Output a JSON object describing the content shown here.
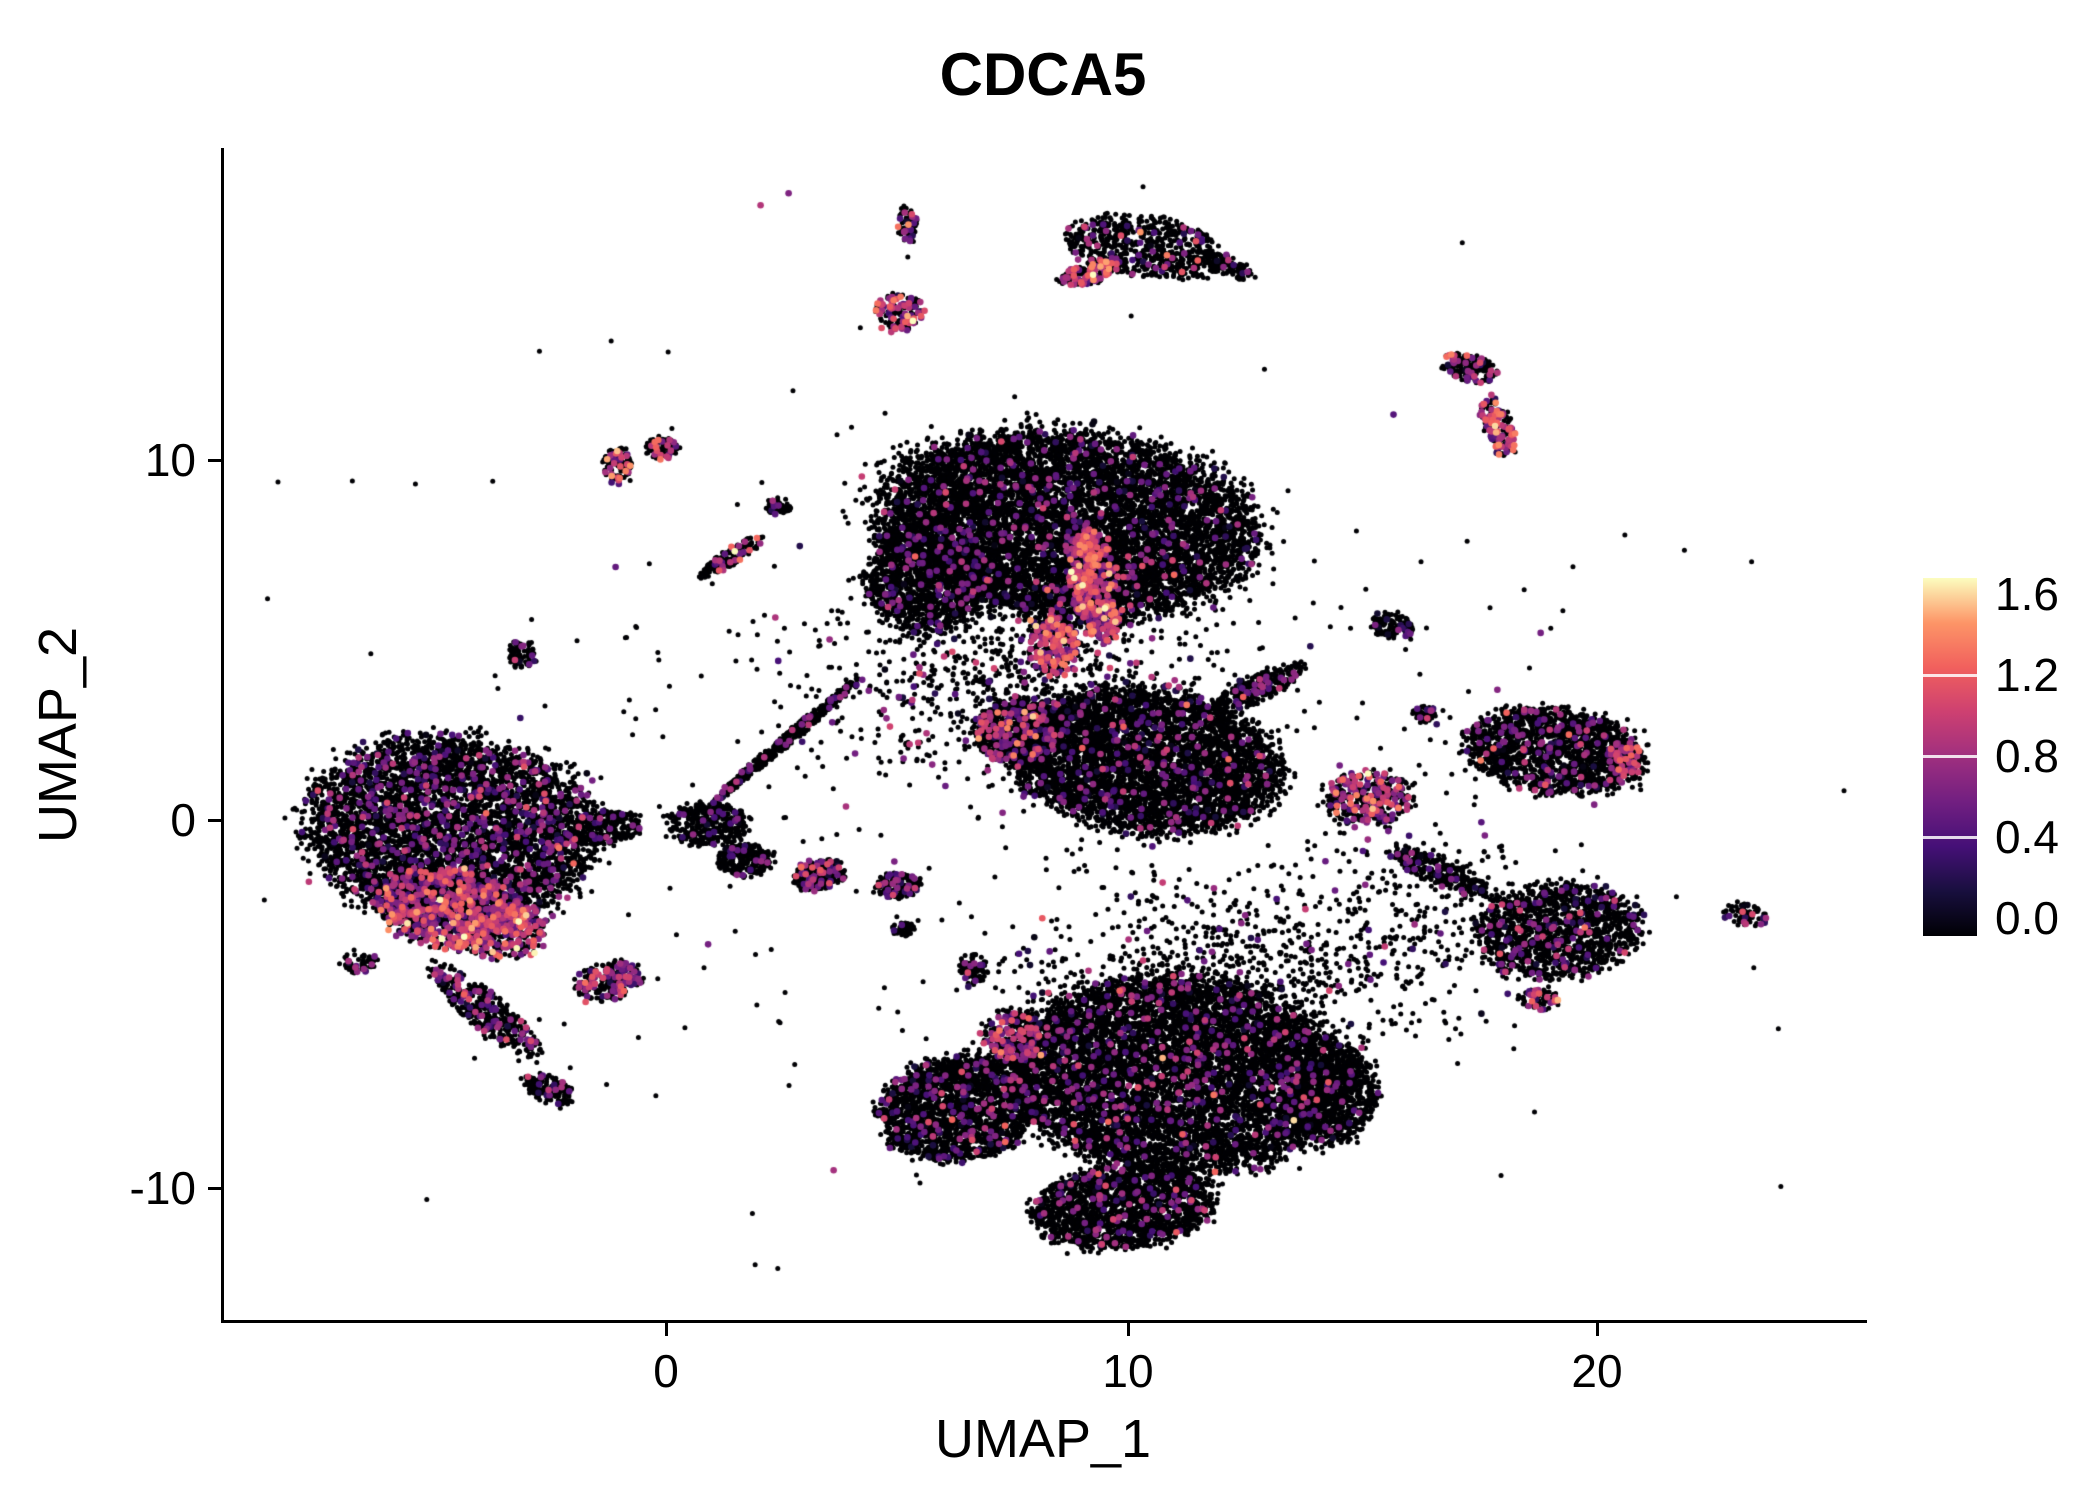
{
  "figure": {
    "background": "#ffffff",
    "text_color": "#000000"
  },
  "chart_data": {
    "type": "scatter",
    "title": "CDCA5",
    "xlabel": "UMAP_1",
    "ylabel": "UMAP_2",
    "xlim": [
      -9.5,
      25.7
    ],
    "ylim": [
      -13.7,
      18.4
    ],
    "xticks": [
      0,
      10,
      20
    ],
    "xtick_labels": [
      "0",
      "10",
      "20"
    ],
    "yticks": [
      -10,
      0,
      10
    ],
    "ytick_labels": [
      "-10",
      "0",
      "10"
    ],
    "grid": false,
    "seed": 42,
    "point": {
      "base_color": "#000004",
      "radius_black": 2.5,
      "radius_expr": 3.3
    },
    "legend": {
      "position": "right",
      "min": 0.0,
      "max": 1.6,
      "ticks": [
        1.6,
        1.2,
        0.8,
        0.4,
        0.0
      ],
      "tick_labels": [
        "1.6",
        "1.2",
        "0.8",
        "0.4",
        "0.0"
      ],
      "palette": "magma",
      "stops": [
        "#000004",
        "#180f3e",
        "#451077",
        "#721f81",
        "#9f2f7f",
        "#cd4071",
        "#f1605d",
        "#fd9567",
        "#fcfdbf"
      ]
    },
    "clusters": [
      {
        "cx": -4.6,
        "cy": -0.3,
        "rx": 3.1,
        "ry": 2.5,
        "rot": -10,
        "n": 5200,
        "frac": 0.1,
        "mean": 0.55,
        "sd": 0.25,
        "dist": "disc"
      },
      {
        "cx": -4.7,
        "cy": -2.4,
        "rx": 1.5,
        "ry": 1.1,
        "rot": -15,
        "n": 900,
        "frac": 0.5,
        "mean": 0.8,
        "sd": 0.3,
        "dist": "disc"
      },
      {
        "cx": -3.5,
        "cy": -3.0,
        "rx": 0.9,
        "ry": 0.8,
        "rot": 0,
        "n": 380,
        "frac": 0.45,
        "mean": 0.85,
        "sd": 0.3,
        "dist": "disc"
      },
      {
        "cx": -3.9,
        "cy": -5.2,
        "rx": 1.7,
        "ry": 0.45,
        "rot": -48,
        "n": 420,
        "frac": 0.18,
        "mean": 0.65,
        "sd": 0.25,
        "dist": "disc"
      },
      {
        "cx": -2.5,
        "cy": -7.4,
        "rx": 0.6,
        "ry": 0.35,
        "rot": -30,
        "n": 150,
        "frac": 0.12,
        "mean": 0.55,
        "sd": 0.2,
        "dist": "disc"
      },
      {
        "cx": -6.6,
        "cy": -3.9,
        "rx": 0.4,
        "ry": 0.3,
        "rot": 0,
        "n": 60,
        "frac": 0.15,
        "mean": 0.6,
        "sd": 0.2,
        "dist": "disc"
      },
      {
        "cx": -1.2,
        "cy": -4.4,
        "rx": 0.75,
        "ry": 0.5,
        "rot": 20,
        "n": 240,
        "frac": 0.3,
        "mean": 0.7,
        "sd": 0.3,
        "dist": "disc"
      },
      {
        "cx": 0.9,
        "cy": -0.1,
        "rx": 0.8,
        "ry": 0.6,
        "rot": 0,
        "n": 380,
        "frac": 0.06,
        "mean": 0.5,
        "sd": 0.2,
        "dist": "disc"
      },
      {
        "cx": 1.7,
        "cy": -1.1,
        "rx": 0.6,
        "ry": 0.45,
        "rot": 0,
        "n": 240,
        "frac": 0.06,
        "mean": 0.5,
        "sd": 0.2,
        "dist": "disc"
      },
      {
        "cx": 2.6,
        "cy": 2.2,
        "rx": 2.3,
        "ry": 0.14,
        "rot": 47,
        "n": 420,
        "frac": 0.08,
        "mean": 0.6,
        "sd": 0.25,
        "dist": "disc"
      },
      {
        "cx": -1.05,
        "cy": 9.7,
        "rx": 0.3,
        "ry": 0.5,
        "rot": 0,
        "n": 110,
        "frac": 0.25,
        "mean": 0.9,
        "sd": 0.3,
        "dist": "disc"
      },
      {
        "cx": -0.1,
        "cy": 10.2,
        "rx": 0.35,
        "ry": 0.3,
        "rot": 0,
        "n": 90,
        "frac": 0.2,
        "mean": 0.8,
        "sd": 0.3,
        "dist": "disc"
      },
      {
        "cx": 1.4,
        "cy": 7.2,
        "rx": 0.85,
        "ry": 0.22,
        "rot": 40,
        "n": 140,
        "frac": 0.15,
        "mean": 0.7,
        "sd": 0.3,
        "dist": "disc"
      },
      {
        "cx": 2.4,
        "cy": 8.6,
        "rx": 0.3,
        "ry": 0.2,
        "rot": 0,
        "n": 60,
        "frac": 0.1,
        "mean": 0.6,
        "sd": 0.2,
        "dist": "disc"
      },
      {
        "cx": -3.1,
        "cy": 4.5,
        "rx": 0.32,
        "ry": 0.38,
        "rot": 0,
        "n": 70,
        "frac": 0.2,
        "mean": 0.7,
        "sd": 0.25,
        "dist": "disc"
      },
      {
        "cx": 5.2,
        "cy": 16.3,
        "rx": 0.2,
        "ry": 0.5,
        "rot": 0,
        "n": 70,
        "frac": 0.3,
        "mean": 0.8,
        "sd": 0.3,
        "dist": "disc"
      },
      {
        "cx": 5.0,
        "cy": 13.9,
        "rx": 0.5,
        "ry": 0.5,
        "rot": 0,
        "n": 160,
        "frac": 0.35,
        "mean": 0.8,
        "sd": 0.3,
        "dist": "disc"
      },
      {
        "cx": 10.3,
        "cy": 15.7,
        "rx": 1.7,
        "ry": 0.8,
        "rot": -12,
        "n": 620,
        "frac": 0.1,
        "mean": 0.65,
        "sd": 0.3,
        "dist": "disc"
      },
      {
        "cx": 9.1,
        "cy": 15.0,
        "rx": 0.7,
        "ry": 0.3,
        "rot": 25,
        "n": 180,
        "frac": 0.3,
        "mean": 0.9,
        "sd": 0.3,
        "dist": "disc"
      },
      {
        "cx": 12.0,
        "cy": 15.2,
        "rx": 0.7,
        "ry": 0.25,
        "rot": -25,
        "n": 130,
        "frac": 0.1,
        "mean": 0.6,
        "sd": 0.25,
        "dist": "disc"
      },
      {
        "cx": 8.6,
        "cy": 8.1,
        "rx": 4.0,
        "ry": 2.5,
        "rot": -8,
        "n": 8500,
        "frac": 0.045,
        "mean": 0.55,
        "sd": 0.25,
        "dist": "disc"
      },
      {
        "cx": 5.6,
        "cy": 6.6,
        "rx": 1.3,
        "ry": 1.5,
        "rot": 0,
        "n": 1300,
        "frac": 0.05,
        "mean": 0.5,
        "sd": 0.22,
        "dist": "disc"
      },
      {
        "cx": 9.2,
        "cy": 6.4,
        "rx": 0.5,
        "ry": 1.6,
        "rot": 8,
        "n": 600,
        "frac": 0.55,
        "mean": 0.85,
        "sd": 0.3,
        "dist": "disc"
      },
      {
        "cx": 8.3,
        "cy": 4.8,
        "rx": 0.5,
        "ry": 0.8,
        "rot": 0,
        "n": 260,
        "frac": 0.5,
        "mean": 0.9,
        "sd": 0.3,
        "dist": "disc"
      },
      {
        "cx": 7.4,
        "cy": 3.9,
        "rx": 2.2,
        "ry": 1.4,
        "rot": 0,
        "n": 850,
        "frac": 0.12,
        "mean": 0.6,
        "sd": 0.25,
        "dist": "gauss"
      },
      {
        "cx": 10.3,
        "cy": 1.6,
        "rx": 2.9,
        "ry": 1.9,
        "rot": -12,
        "n": 4800,
        "frac": 0.05,
        "mean": 0.55,
        "sd": 0.25,
        "dist": "disc"
      },
      {
        "cx": 12.7,
        "cy": 3.6,
        "rx": 1.1,
        "ry": 0.35,
        "rot": 33,
        "n": 280,
        "frac": 0.1,
        "mean": 0.6,
        "sd": 0.25,
        "dist": "disc"
      },
      {
        "cx": 7.6,
        "cy": 2.4,
        "rx": 0.95,
        "ry": 0.9,
        "rot": 0,
        "n": 700,
        "frac": 0.18,
        "mean": 0.7,
        "sd": 0.3,
        "dist": "disc"
      },
      {
        "cx": 3.3,
        "cy": -1.5,
        "rx": 0.55,
        "ry": 0.4,
        "rot": 15,
        "n": 220,
        "frac": 0.2,
        "mean": 0.7,
        "sd": 0.3,
        "dist": "disc"
      },
      {
        "cx": 5.0,
        "cy": -1.8,
        "rx": 0.5,
        "ry": 0.35,
        "rot": 0,
        "n": 160,
        "frac": 0.12,
        "mean": 0.6,
        "sd": 0.25,
        "dist": "disc"
      },
      {
        "cx": 6.6,
        "cy": -4.1,
        "rx": 0.3,
        "ry": 0.45,
        "rot": 0,
        "n": 90,
        "frac": 0.1,
        "mean": 0.55,
        "sd": 0.2,
        "dist": "disc"
      },
      {
        "cx": 5.1,
        "cy": -3.0,
        "rx": 0.25,
        "ry": 0.2,
        "rot": 0,
        "n": 50,
        "frac": 0.1,
        "mean": 0.5,
        "sd": 0.2,
        "dist": "disc"
      },
      {
        "cx": 15.1,
        "cy": 0.6,
        "rx": 0.95,
        "ry": 0.75,
        "rot": 0,
        "n": 380,
        "frac": 0.3,
        "mean": 0.8,
        "sd": 0.3,
        "dist": "disc"
      },
      {
        "cx": 15.6,
        "cy": 5.3,
        "rx": 0.5,
        "ry": 0.35,
        "rot": -20,
        "n": 110,
        "frac": 0.08,
        "mean": 0.5,
        "sd": 0.2,
        "dist": "disc"
      },
      {
        "cx": 16.3,
        "cy": 2.9,
        "rx": 0.25,
        "ry": 0.25,
        "rot": 0,
        "n": 50,
        "frac": 0.1,
        "mean": 0.6,
        "sd": 0.2,
        "dist": "disc"
      },
      {
        "cx": 19.1,
        "cy": 1.9,
        "rx": 1.9,
        "ry": 1.15,
        "rot": -8,
        "n": 1700,
        "frac": 0.07,
        "mean": 0.6,
        "sd": 0.25,
        "dist": "disc"
      },
      {
        "cx": 20.6,
        "cy": 1.7,
        "rx": 0.35,
        "ry": 0.5,
        "rot": 0,
        "n": 120,
        "frac": 0.4,
        "mean": 0.8,
        "sd": 0.3,
        "dist": "disc"
      },
      {
        "cx": 17.3,
        "cy": 12.4,
        "rx": 0.6,
        "ry": 0.4,
        "rot": -20,
        "n": 180,
        "frac": 0.18,
        "mean": 0.7,
        "sd": 0.3,
        "dist": "disc"
      },
      {
        "cx": 17.9,
        "cy": 10.7,
        "rx": 0.3,
        "ry": 0.85,
        "rot": 15,
        "n": 160,
        "frac": 0.4,
        "mean": 0.85,
        "sd": 0.3,
        "dist": "disc"
      },
      {
        "cx": 19.2,
        "cy": -3.0,
        "rx": 1.75,
        "ry": 1.3,
        "rot": 10,
        "n": 1400,
        "frac": 0.07,
        "mean": 0.6,
        "sd": 0.25,
        "dist": "disc"
      },
      {
        "cx": 18.8,
        "cy": -4.9,
        "rx": 0.45,
        "ry": 0.3,
        "rot": 0,
        "n": 70,
        "frac": 0.45,
        "mean": 0.9,
        "sd": 0.3,
        "dist": "disc"
      },
      {
        "cx": 16.6,
        "cy": -1.4,
        "rx": 1.25,
        "ry": 0.35,
        "rot": -30,
        "n": 280,
        "frac": 0.08,
        "mean": 0.5,
        "sd": 0.2,
        "dist": "disc"
      },
      {
        "cx": 16.1,
        "cy": -2.2,
        "rx": 1.4,
        "ry": 1.4,
        "rot": 0,
        "n": 220,
        "frac": 0.06,
        "mean": 0.5,
        "sd": 0.2,
        "dist": "gauss"
      },
      {
        "cx": 23.2,
        "cy": -2.6,
        "rx": 0.5,
        "ry": 0.3,
        "rot": -20,
        "n": 80,
        "frac": 0.15,
        "mean": 0.7,
        "sd": 0.3,
        "dist": "disc"
      },
      {
        "cx": 11.0,
        "cy": -7.0,
        "rx": 3.6,
        "ry": 2.6,
        "rot": -5,
        "n": 8000,
        "frac": 0.05,
        "mean": 0.6,
        "sd": 0.25,
        "dist": "disc"
      },
      {
        "cx": 6.3,
        "cy": -7.9,
        "rx": 1.7,
        "ry": 1.4,
        "rot": 20,
        "n": 2200,
        "frac": 0.06,
        "mean": 0.55,
        "sd": 0.25,
        "dist": "disc"
      },
      {
        "cx": 7.5,
        "cy": -5.9,
        "rx": 0.7,
        "ry": 0.7,
        "rot": 0,
        "n": 300,
        "frac": 0.3,
        "mean": 0.75,
        "sd": 0.3,
        "dist": "disc"
      },
      {
        "cx": 9.8,
        "cy": -10.6,
        "rx": 1.9,
        "ry": 1.1,
        "rot": 8,
        "n": 1900,
        "frac": 0.06,
        "mean": 0.6,
        "sd": 0.25,
        "dist": "disc"
      },
      {
        "cx": 12.0,
        "cy": -4.2,
        "rx": 2.4,
        "ry": 1.2,
        "rot": 0,
        "n": 800,
        "frac": 0.08,
        "mean": 0.55,
        "sd": 0.25,
        "dist": "gauss"
      },
      {
        "cx": 14.3,
        "cy": -7.5,
        "rx": 1.0,
        "ry": 1.3,
        "rot": 0,
        "n": 800,
        "frac": 0.04,
        "mean": 0.5,
        "sd": 0.2,
        "dist": "disc"
      },
      {
        "cx": -1.3,
        "cy": -0.2,
        "rx": 0.85,
        "ry": 0.45,
        "rot": 10,
        "n": 240,
        "frac": 0.08,
        "mean": 0.55,
        "sd": 0.2,
        "dist": "disc"
      },
      {
        "cx": 8.0,
        "cy": 1.5,
        "rx": 7.0,
        "ry": 5.5,
        "rot": 0,
        "n": 420,
        "frac": 0.1,
        "mean": 0.5,
        "sd": 0.25,
        "dist": "gauss"
      }
    ]
  }
}
